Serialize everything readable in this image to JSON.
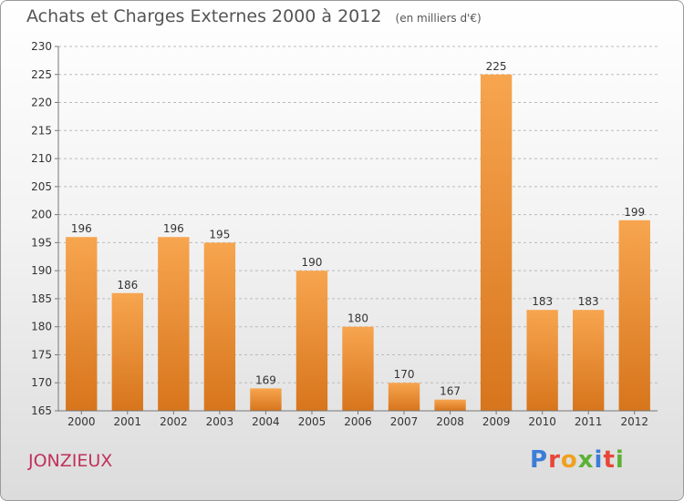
{
  "header": {
    "title": "Achats et Charges Externes 2000 à 2012",
    "unit": "(en milliers d'€)"
  },
  "footer": {
    "commune": "JONZIEUX",
    "logo_text": "Proxiti",
    "logo_colors": [
      "#3b7dd8",
      "#e8463a",
      "#f0a020",
      "#5cb135",
      "#3b7dd8",
      "#e8463a",
      "#5cb135"
    ]
  },
  "colors": {
    "bar_top": "#f7a54f",
    "bar_bottom": "#d7751c",
    "axis": "#777777",
    "grid": "#bbbbbb",
    "text": "#333333",
    "title": "#555555",
    "commune": "#c0315b"
  },
  "chart_data": {
    "type": "bar",
    "title": "Achats et Charges Externes 2000 à 2012",
    "subtitle": "(en milliers d'€)",
    "xlabel": "",
    "ylabel": "",
    "categories": [
      "2000",
      "2001",
      "2002",
      "2003",
      "2004",
      "2005",
      "2006",
      "2007",
      "2008",
      "2009",
      "2010",
      "2011",
      "2012"
    ],
    "values": [
      196,
      186,
      196,
      195,
      169,
      190,
      180,
      170,
      167,
      225,
      183,
      183,
      199
    ],
    "data_labels": [
      "196",
      "186",
      "196",
      "195",
      "169",
      "190",
      "180",
      "170",
      "167",
      "225",
      "183",
      "183",
      "199"
    ],
    "ylim": [
      165,
      230
    ],
    "yticks": [
      165,
      170,
      175,
      180,
      185,
      190,
      195,
      200,
      205,
      210,
      215,
      220,
      225,
      230
    ],
    "grid": "horizontal dashed",
    "legend": "none"
  }
}
